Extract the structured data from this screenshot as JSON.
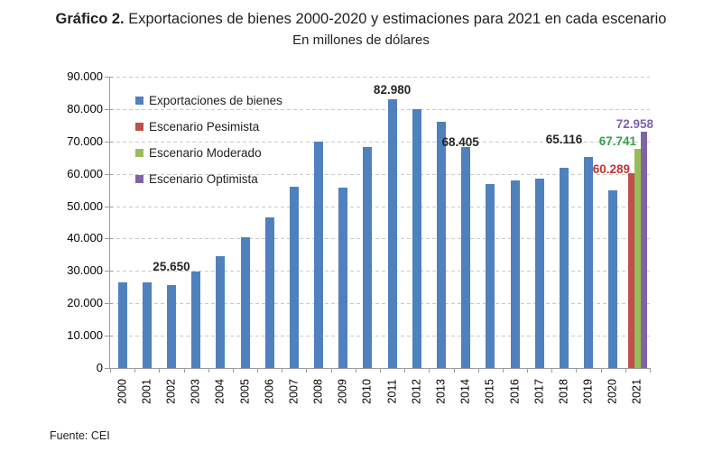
{
  "page": {
    "title_prefix": "Gráfico 2.",
    "title_rest": " Exportaciones de bienes 2000-2020 y estimaciones para 2021 en cada escenario",
    "subtitle": "En millones de dólares",
    "source": "Fuente: CEI"
  },
  "chart_data": {
    "type": "bar",
    "title": "Gráfico 2. Exportaciones de bienes 2000-2020 y estimaciones para 2021 en cada escenario",
    "subtitle": "En millones de dólares",
    "source": "Fuente: CEI",
    "categories": [
      "2000",
      "2001",
      "2002",
      "2003",
      "2004",
      "2005",
      "2006",
      "2007",
      "2008",
      "2009",
      "2010",
      "2011",
      "2012",
      "2013",
      "2014",
      "2015",
      "2016",
      "2017",
      "2018",
      "2019",
      "2020",
      "2021"
    ],
    "y_axis": {
      "min": 0,
      "max": 90000,
      "tick_step": 10000,
      "tick_labels": [
        "0",
        "10.000",
        "20.000",
        "30.000",
        "40.000",
        "50.000",
        "60.000",
        "70.000",
        "80.000",
        "90.000"
      ]
    },
    "grid": "dashed-horizontal",
    "legend_position": "top-left-inside",
    "series": [
      {
        "name": "Exportaciones de bienes",
        "color": "#4F81BD",
        "values": [
          26341,
          26543,
          25650,
          29939,
          34576,
          40387,
          46546,
          55980,
          70019,
          55672,
          68174,
          82980,
          79982,
          75963,
          68405,
          56784,
          57879,
          58622,
          61782,
          65116,
          54884,
          null
        ]
      },
      {
        "name": "Escenario Pesimista",
        "color": "#C0504D",
        "values": [
          null,
          null,
          null,
          null,
          null,
          null,
          null,
          null,
          null,
          null,
          null,
          null,
          null,
          null,
          null,
          null,
          null,
          null,
          null,
          null,
          null,
          60289
        ]
      },
      {
        "name": "Escenario Moderado",
        "color": "#9BBB59",
        "values": [
          null,
          null,
          null,
          null,
          null,
          null,
          null,
          null,
          null,
          null,
          null,
          null,
          null,
          null,
          null,
          null,
          null,
          null,
          null,
          null,
          null,
          67741
        ]
      },
      {
        "name": "Escenario Optimista",
        "color": "#8064A2",
        "values": [
          null,
          null,
          null,
          null,
          null,
          null,
          null,
          null,
          null,
          null,
          null,
          null,
          null,
          null,
          null,
          null,
          null,
          null,
          null,
          null,
          null,
          72958
        ]
      }
    ],
    "data_labels": [
      {
        "category": "2002",
        "series": 0,
        "text": "25.650",
        "color": "#262626"
      },
      {
        "category": "2011",
        "series": 0,
        "text": "82.980",
        "color": "#262626"
      },
      {
        "category": "2014",
        "series": 0,
        "text": "68.405",
        "color": "#262626"
      },
      {
        "category": "2019",
        "series": 0,
        "text": "65.116",
        "color": "#262626"
      },
      {
        "category": "2021",
        "series": 1,
        "text": "60.289",
        "color": "#BF3330"
      },
      {
        "category": "2021",
        "series": 2,
        "text": "67.741",
        "color": "#35A047"
      },
      {
        "category": "2021",
        "series": 3,
        "text": "72.958",
        "color": "#7D5FA7"
      }
    ]
  }
}
